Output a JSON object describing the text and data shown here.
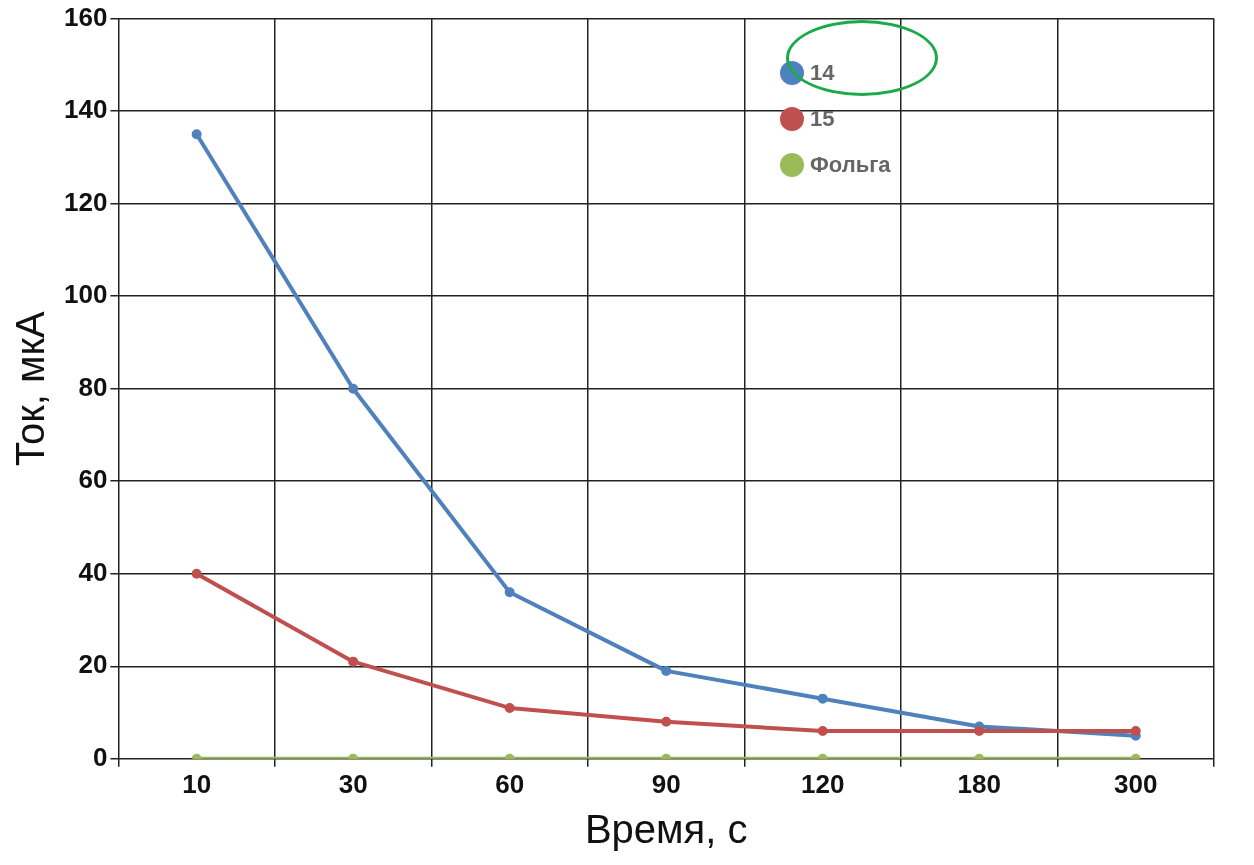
{
  "chart_data": {
    "type": "line",
    "xlabel": "Время, с",
    "ylabel": "Ток, мкА",
    "categories": [
      "10",
      "30",
      "60",
      "90",
      "120",
      "180",
      "300"
    ],
    "series": [
      {
        "name": "14",
        "color": "#4f81bd",
        "values": [
          135,
          80,
          36,
          19,
          13,
          7,
          5
        ]
      },
      {
        "name": "15",
        "color": "#c0504d",
        "values": [
          40,
          21,
          11,
          8,
          6,
          6,
          6
        ]
      },
      {
        "name": "Фольга",
        "color": "#9bbb59",
        "values": [
          0,
          0,
          0,
          0,
          0,
          0,
          0
        ]
      }
    ],
    "ylim": [
      0,
      160
    ],
    "yticks": [
      0,
      20,
      40,
      60,
      80,
      100,
      120,
      140,
      160
    ],
    "grid": true,
    "legend": "top",
    "marker": "circle"
  }
}
